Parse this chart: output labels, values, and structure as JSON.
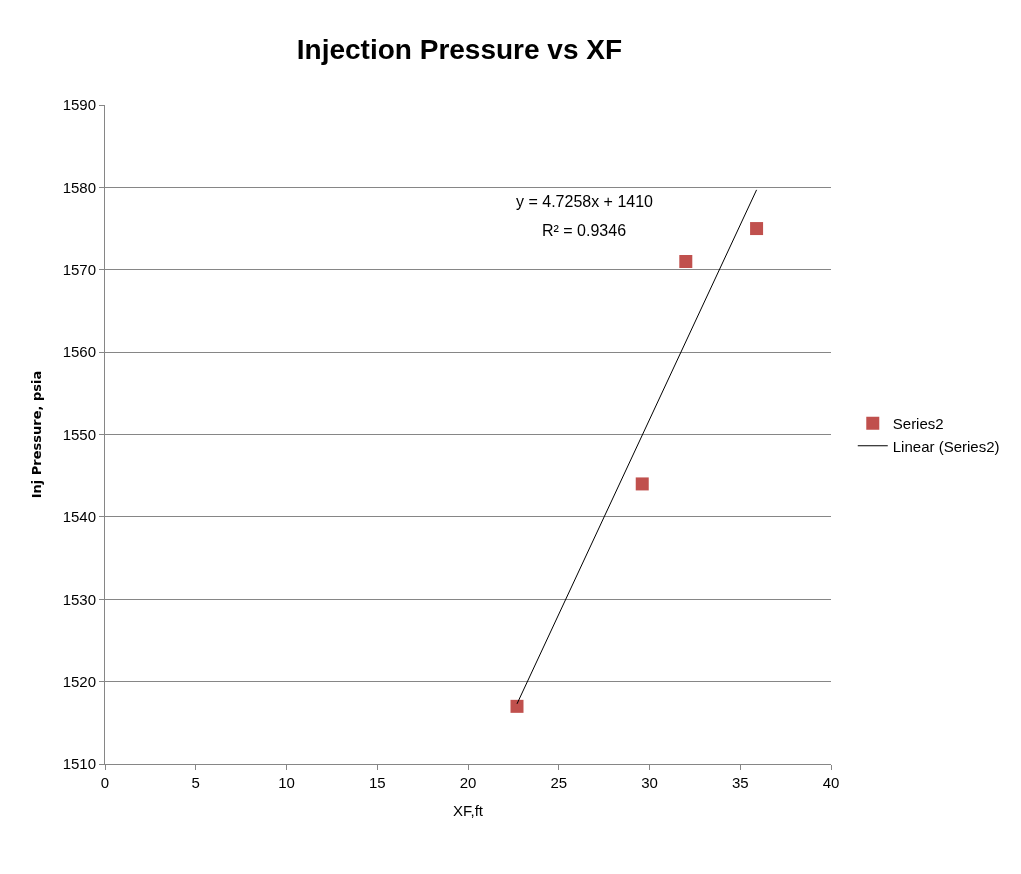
{
  "chart_data": {
    "type": "scatter",
    "title": "Injection Pressure vs XF",
    "xlabel": "XF,ft",
    "ylabel": "Inj Pressure, psia",
    "series": [
      {
        "name": "Series2",
        "color": "#c0504d",
        "marker": "square",
        "x": [
          22.7,
          29.6,
          32.0,
          35.9
        ],
        "values": [
          1517,
          1544,
          1571,
          1575
        ]
      },
      {
        "name": "Linear (Series2)",
        "type": "line",
        "color": "#000000",
        "marker": "none",
        "x": [
          22.7,
          35.9
        ],
        "values": [
          1517.3,
          1579.7
        ]
      }
    ],
    "annotations": [
      "y = 4.7258x + 1410",
      "R² = 0.9346"
    ],
    "xlim": [
      0,
      40
    ],
    "xticks": [
      0,
      5,
      10,
      15,
      20,
      25,
      30,
      35,
      40
    ],
    "ylim": [
      1510,
      1590
    ],
    "yticks": [
      1510,
      1520,
      1530,
      1540,
      1550,
      1560,
      1570,
      1580,
      1590
    ],
    "grid": "y",
    "legend": "right"
  }
}
